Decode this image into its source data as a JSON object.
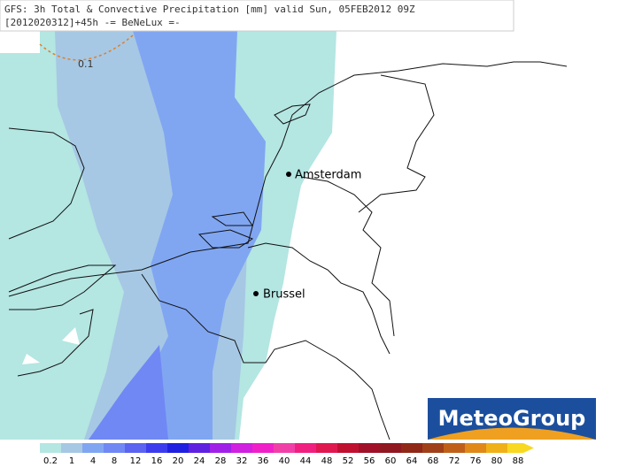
{
  "header": {
    "line1": "GFS: 3h Total & Convective Precipitation [mm] valid Sun, 05FEB2012 09Z",
    "line2": "[2012020312]+45h  -= BeNeLux =-"
  },
  "contour_label": "0.1",
  "cities": [
    {
      "name": "Amsterdam"
    },
    {
      "name": "Brussel"
    }
  ],
  "logo": "MeteoGroup",
  "scale": [
    {
      "label": "0.2",
      "color": "#b4e6e2"
    },
    {
      "label": "1",
      "color": "#a6c8e4"
    },
    {
      "label": "4",
      "color": "#80a6f2"
    },
    {
      "label": "8",
      "color": "#7088f4"
    },
    {
      "label": "12",
      "color": "#5a64f0"
    },
    {
      "label": "16",
      "color": "#3c3cee"
    },
    {
      "label": "20",
      "color": "#2020e0"
    },
    {
      "label": "24",
      "color": "#6020e0"
    },
    {
      "label": "28",
      "color": "#a020e8"
    },
    {
      "label": "32",
      "color": "#d020e0"
    },
    {
      "label": "36",
      "color": "#f020c8"
    },
    {
      "label": "40",
      "color": "#f040a8"
    },
    {
      "label": "44",
      "color": "#f02080"
    },
    {
      "label": "48",
      "color": "#e01850"
    },
    {
      "label": "52",
      "color": "#c01030"
    },
    {
      "label": "56",
      "color": "#a01028"
    },
    {
      "label": "60",
      "color": "#901820"
    },
    {
      "label": "64",
      "color": "#902818"
    },
    {
      "label": "68",
      "color": "#a04018"
    },
    {
      "label": "72",
      "color": "#c06018"
    },
    {
      "label": "76",
      "color": "#e08818"
    },
    {
      "label": "80",
      "color": "#f0b018"
    },
    {
      "label": "88",
      "color": "#f8d820"
    }
  ]
}
